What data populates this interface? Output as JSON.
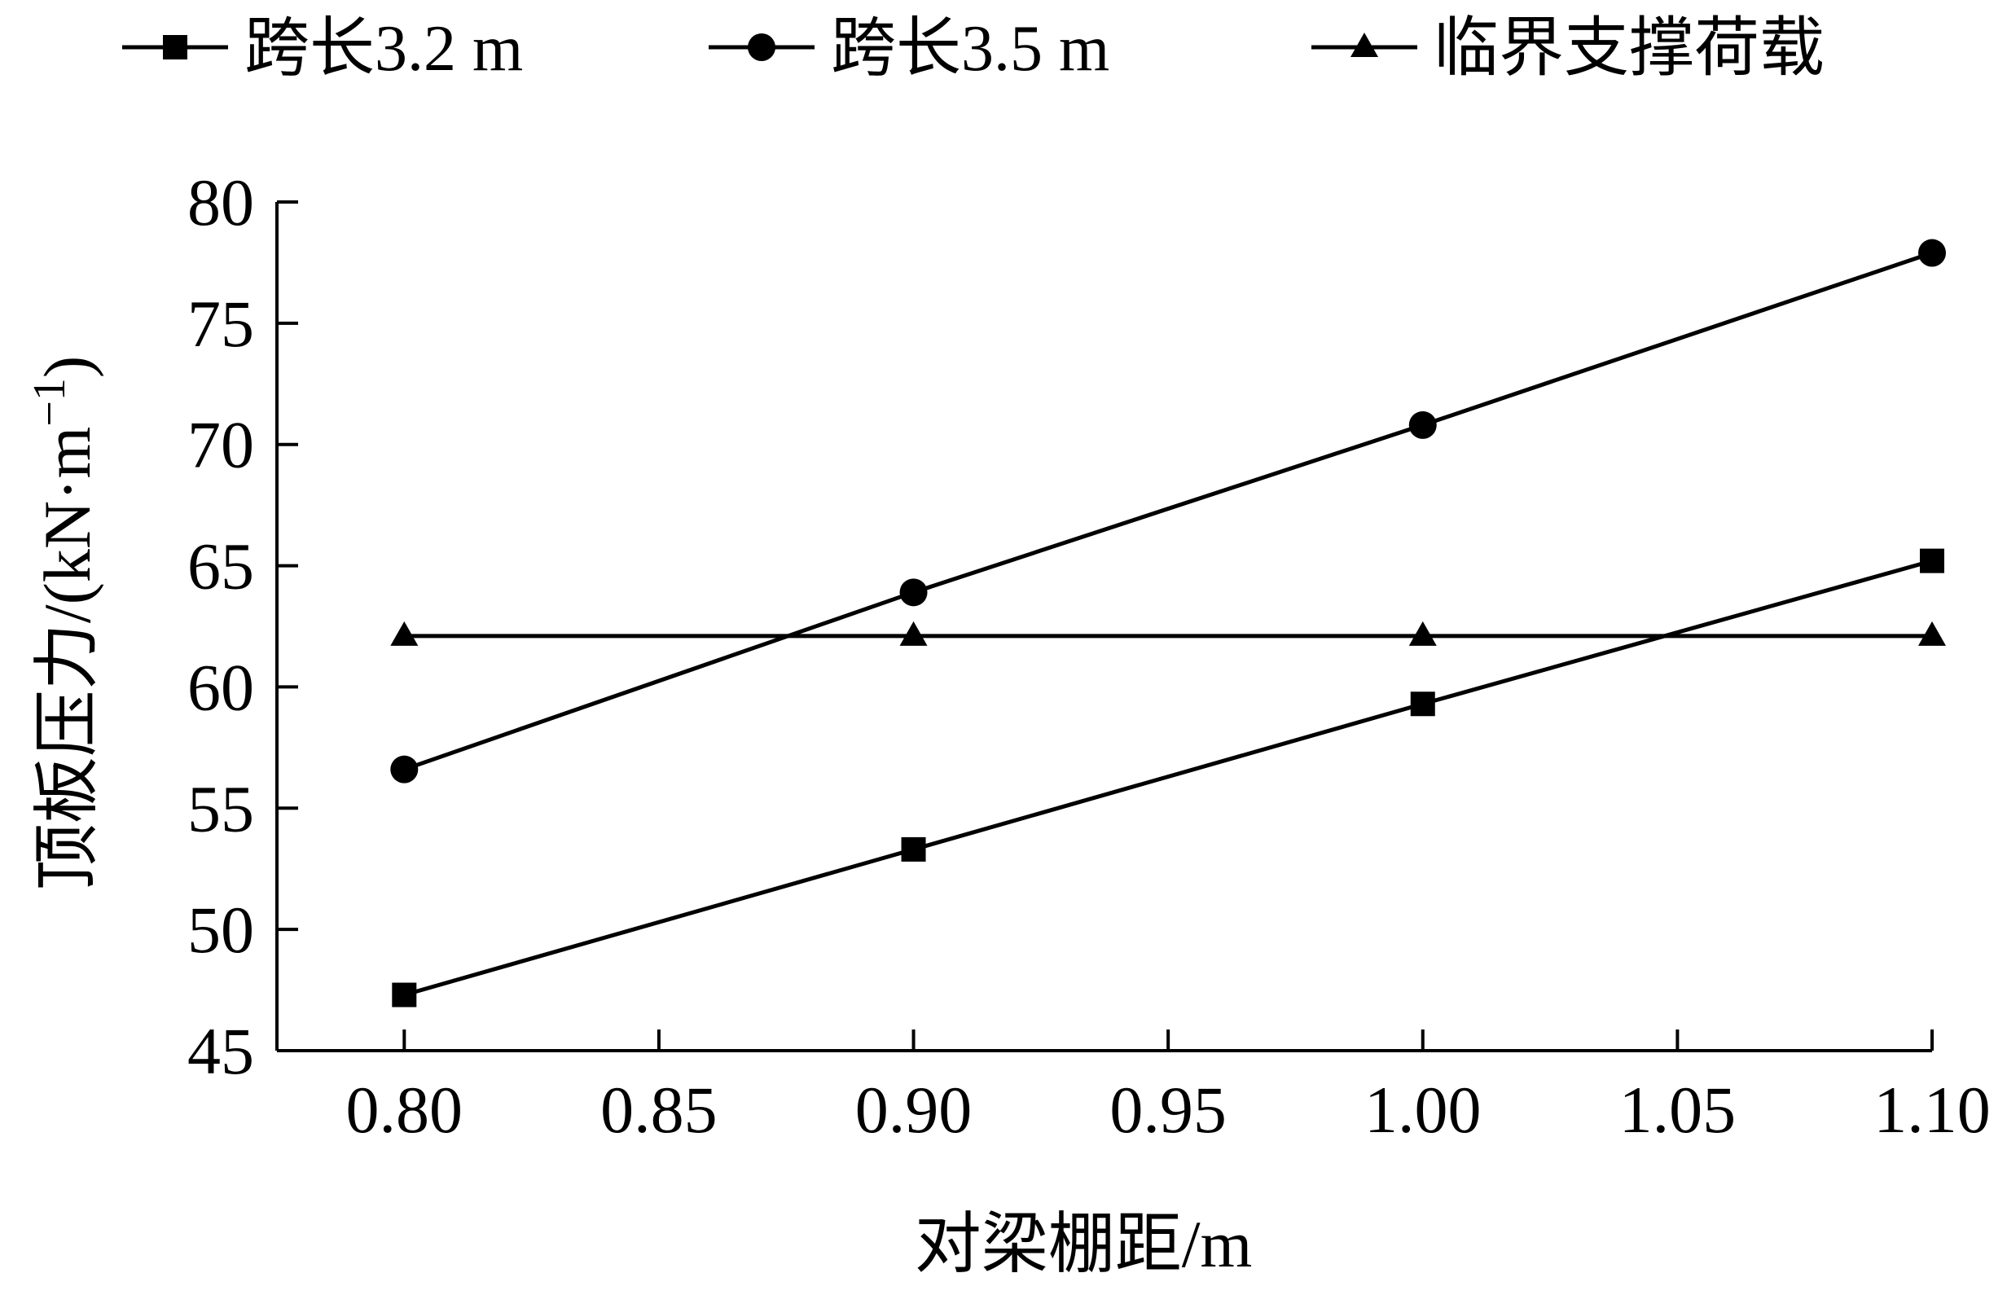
{
  "chart_data": {
    "type": "line",
    "title": "",
    "xlabel": "对梁棚距/m",
    "ylabel": "顶板压力/(kN·m",
    "ylabel_sup": "−1",
    "ylabel_close": ")",
    "xlim": [
      0.775,
      1.1
    ],
    "ylim": [
      45,
      80
    ],
    "xticks": [
      0.8,
      0.85,
      0.9,
      0.95,
      1.0,
      1.05,
      1.1
    ],
    "xtick_labels": [
      "0.80",
      "0.85",
      "0.90",
      "0.95",
      "1.00",
      "1.05",
      "1.10"
    ],
    "yticks": [
      45,
      50,
      55,
      60,
      65,
      70,
      75,
      80
    ],
    "ytick_labels": [
      "45",
      "50",
      "55",
      "60",
      "65",
      "70",
      "75",
      "80"
    ],
    "grid": false,
    "legend_position": "top",
    "x": [
      0.8,
      0.9,
      1.0,
      1.1
    ],
    "series": [
      {
        "name": "跨长3.2 m",
        "marker": "square",
        "values": [
          47.3,
          53.3,
          59.3,
          65.2
        ]
      },
      {
        "name": "跨长3.5 m",
        "marker": "circle",
        "values": [
          56.6,
          63.9,
          70.8,
          77.9
        ]
      },
      {
        "name": "临界支撑荷载",
        "marker": "triangle",
        "values": [
          62.1,
          62.1,
          62.1,
          62.1
        ]
      }
    ],
    "colors": {
      "line": "#000000",
      "background": "#ffffff"
    }
  }
}
